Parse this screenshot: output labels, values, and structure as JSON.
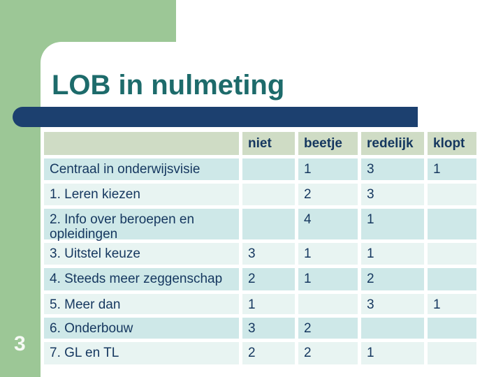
{
  "slide": {
    "title": "LOB in nulmeting",
    "page_number": "3"
  },
  "table": {
    "headers": [
      "",
      "niet",
      "beetje",
      "redelijk",
      "klopt"
    ],
    "rows": [
      {
        "label": "Centraal in onderwijsvisie",
        "niet": "",
        "beetje": "1",
        "redelijk": "3",
        "klopt": "1"
      },
      {
        "label": "1. Leren kiezen",
        "niet": "",
        "beetje": "2",
        "redelijk": "3",
        "klopt": ""
      },
      {
        "label": "2. Info over beroepen en opleidingen",
        "niet": "",
        "beetje": "4",
        "redelijk": "1",
        "klopt": ""
      },
      {
        "label": "3. Uitstel keuze",
        "niet": "3",
        "beetje": "1",
        "redelijk": "1",
        "klopt": ""
      },
      {
        "label": "4. Steeds meer zeggenschap",
        "niet": "2",
        "beetje": "1",
        "redelijk": "2",
        "klopt": ""
      },
      {
        "label": "5. Meer dan",
        "niet": "1",
        "beetje": "",
        "redelijk": "3",
        "klopt": "1"
      },
      {
        "label": "6. Onderbouw",
        "niet": "3",
        "beetje": "2",
        "redelijk": "",
        "klopt": ""
      },
      {
        "label": "7. GL en TL",
        "niet": "2",
        "beetje": "2",
        "redelijk": "1",
        "klopt": ""
      }
    ]
  },
  "colors": {
    "accent_green": "#9cc796",
    "navy_bar": "#1c406f",
    "title_teal": "#1d6b6b",
    "table_header_bg": "#cfdcc5",
    "row_dark_bg": "#cee8e8",
    "row_light_bg": "#e8f4f2",
    "cell_text": "#15375f",
    "page_number_color": "#f6faf5"
  }
}
